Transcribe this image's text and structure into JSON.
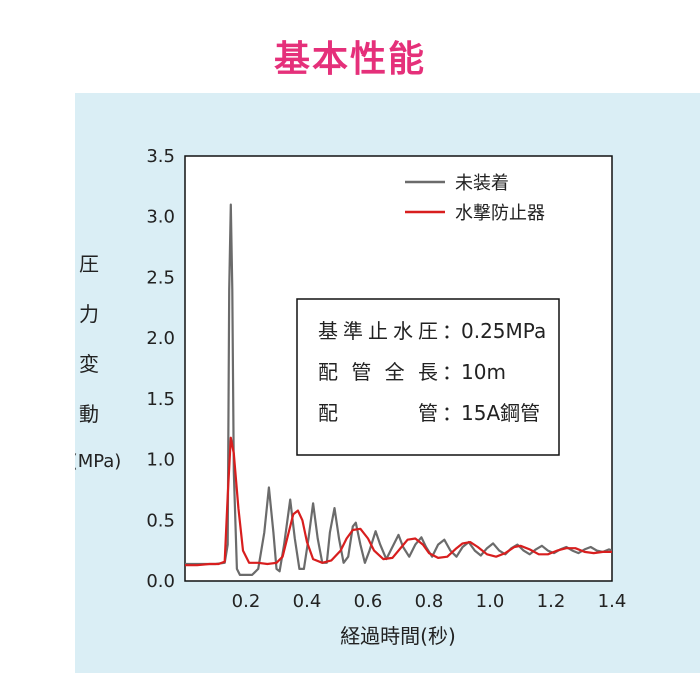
{
  "title": "基本性能",
  "chart_data": {
    "type": "line",
    "xlabel": "経過時間(秒)",
    "ylabel_chars": [
      "圧",
      "力",
      "変",
      "動"
    ],
    "ylabel_unit": "(MPa)",
    "xlim": [
      0,
      1.4
    ],
    "ylim": [
      0,
      3.5
    ],
    "xticks": [
      {
        "value": 0.2,
        "label": "0.2"
      },
      {
        "value": 0.4,
        "label": "0.4"
      },
      {
        "value": 0.6,
        "label": "0.6"
      },
      {
        "value": 0.8,
        "label": "0.8"
      },
      {
        "value": 1.0,
        "label": "1.0"
      },
      {
        "value": 1.2,
        "label": "1.2"
      },
      {
        "value": 1.4,
        "label": "1.4"
      }
    ],
    "yticks": [
      {
        "value": 0.0,
        "label": "0.0"
      },
      {
        "value": 0.5,
        "label": "0.5"
      },
      {
        "value": 1.0,
        "label": "1.0"
      },
      {
        "value": 1.5,
        "label": "1.5"
      },
      {
        "value": 2.0,
        "label": "2.0"
      },
      {
        "value": 2.5,
        "label": "2.5"
      },
      {
        "value": 3.0,
        "label": "3.0"
      },
      {
        "value": 3.5,
        "label": "3.5"
      }
    ],
    "grid": false,
    "legend_position": "top-right",
    "series": [
      {
        "name": "未装着",
        "color": "#6b6b6b",
        "points": [
          [
            0.0,
            0.14
          ],
          [
            0.1,
            0.14
          ],
          [
            0.13,
            0.15
          ],
          [
            0.14,
            0.3
          ],
          [
            0.145,
            2.4
          ],
          [
            0.15,
            3.1
          ],
          [
            0.155,
            2.4
          ],
          [
            0.16,
            0.9
          ],
          [
            0.17,
            0.1
          ],
          [
            0.18,
            0.05
          ],
          [
            0.2,
            0.05
          ],
          [
            0.22,
            0.05
          ],
          [
            0.24,
            0.1
          ],
          [
            0.26,
            0.4
          ],
          [
            0.275,
            0.77
          ],
          [
            0.29,
            0.4
          ],
          [
            0.3,
            0.1
          ],
          [
            0.31,
            0.08
          ],
          [
            0.325,
            0.3
          ],
          [
            0.345,
            0.67
          ],
          [
            0.36,
            0.35
          ],
          [
            0.375,
            0.1
          ],
          [
            0.39,
            0.1
          ],
          [
            0.405,
            0.35
          ],
          [
            0.42,
            0.64
          ],
          [
            0.435,
            0.35
          ],
          [
            0.45,
            0.15
          ],
          [
            0.465,
            0.15
          ],
          [
            0.475,
            0.4
          ],
          [
            0.49,
            0.6
          ],
          [
            0.505,
            0.35
          ],
          [
            0.52,
            0.15
          ],
          [
            0.535,
            0.2
          ],
          [
            0.55,
            0.45
          ],
          [
            0.56,
            0.48
          ],
          [
            0.575,
            0.3
          ],
          [
            0.59,
            0.15
          ],
          [
            0.605,
            0.25
          ],
          [
            0.625,
            0.41
          ],
          [
            0.64,
            0.3
          ],
          [
            0.66,
            0.18
          ],
          [
            0.68,
            0.28
          ],
          [
            0.7,
            0.38
          ],
          [
            0.715,
            0.28
          ],
          [
            0.735,
            0.2
          ],
          [
            0.755,
            0.3
          ],
          [
            0.775,
            0.36
          ],
          [
            0.79,
            0.28
          ],
          [
            0.81,
            0.2
          ],
          [
            0.83,
            0.3
          ],
          [
            0.85,
            0.34
          ],
          [
            0.87,
            0.25
          ],
          [
            0.89,
            0.2
          ],
          [
            0.91,
            0.28
          ],
          [
            0.93,
            0.32
          ],
          [
            0.95,
            0.25
          ],
          [
            0.97,
            0.21
          ],
          [
            0.99,
            0.27
          ],
          [
            1.01,
            0.31
          ],
          [
            1.03,
            0.25
          ],
          [
            1.05,
            0.22
          ],
          [
            1.07,
            0.27
          ],
          [
            1.09,
            0.3
          ],
          [
            1.11,
            0.25
          ],
          [
            1.13,
            0.22
          ],
          [
            1.15,
            0.26
          ],
          [
            1.17,
            0.29
          ],
          [
            1.19,
            0.25
          ],
          [
            1.21,
            0.23
          ],
          [
            1.23,
            0.26
          ],
          [
            1.25,
            0.28
          ],
          [
            1.27,
            0.25
          ],
          [
            1.29,
            0.23
          ],
          [
            1.31,
            0.26
          ],
          [
            1.33,
            0.28
          ],
          [
            1.35,
            0.25
          ],
          [
            1.37,
            0.24
          ],
          [
            1.39,
            0.26
          ],
          [
            1.4,
            0.25
          ]
        ]
      },
      {
        "name": "水撃防止器",
        "color": "#d81e1e",
        "points": [
          [
            0.0,
            0.13
          ],
          [
            0.04,
            0.13
          ],
          [
            0.08,
            0.14
          ],
          [
            0.11,
            0.14
          ],
          [
            0.13,
            0.16
          ],
          [
            0.14,
            0.7
          ],
          [
            0.15,
            1.18
          ],
          [
            0.16,
            1.05
          ],
          [
            0.175,
            0.6
          ],
          [
            0.19,
            0.25
          ],
          [
            0.21,
            0.15
          ],
          [
            0.24,
            0.15
          ],
          [
            0.27,
            0.14
          ],
          [
            0.3,
            0.15
          ],
          [
            0.32,
            0.2
          ],
          [
            0.34,
            0.4
          ],
          [
            0.355,
            0.55
          ],
          [
            0.37,
            0.58
          ],
          [
            0.385,
            0.5
          ],
          [
            0.4,
            0.32
          ],
          [
            0.42,
            0.18
          ],
          [
            0.45,
            0.15
          ],
          [
            0.48,
            0.17
          ],
          [
            0.51,
            0.25
          ],
          [
            0.53,
            0.35
          ],
          [
            0.55,
            0.42
          ],
          [
            0.575,
            0.43
          ],
          [
            0.6,
            0.35
          ],
          [
            0.62,
            0.25
          ],
          [
            0.65,
            0.18
          ],
          [
            0.68,
            0.19
          ],
          [
            0.71,
            0.28
          ],
          [
            0.73,
            0.34
          ],
          [
            0.755,
            0.35
          ],
          [
            0.78,
            0.3
          ],
          [
            0.8,
            0.23
          ],
          [
            0.83,
            0.19
          ],
          [
            0.86,
            0.2
          ],
          [
            0.89,
            0.27
          ],
          [
            0.91,
            0.31
          ],
          [
            0.935,
            0.32
          ],
          [
            0.96,
            0.28
          ],
          [
            0.99,
            0.22
          ],
          [
            1.02,
            0.2
          ],
          [
            1.05,
            0.23
          ],
          [
            1.08,
            0.28
          ],
          [
            1.1,
            0.29
          ],
          [
            1.13,
            0.26
          ],
          [
            1.16,
            0.22
          ],
          [
            1.19,
            0.22
          ],
          [
            1.22,
            0.25
          ],
          [
            1.25,
            0.27
          ],
          [
            1.28,
            0.27
          ],
          [
            1.31,
            0.24
          ],
          [
            1.34,
            0.23
          ],
          [
            1.37,
            0.24
          ],
          [
            1.4,
            0.24
          ]
        ]
      }
    ],
    "annotation_lines": [
      {
        "label": "基準止水圧",
        "value": "0.25MPa"
      },
      {
        "label": "配 管 全 長",
        "value": "10m"
      },
      {
        "label": "配　　　管",
        "value": "15A鋼管"
      }
    ],
    "annotation_sep": "："
  }
}
